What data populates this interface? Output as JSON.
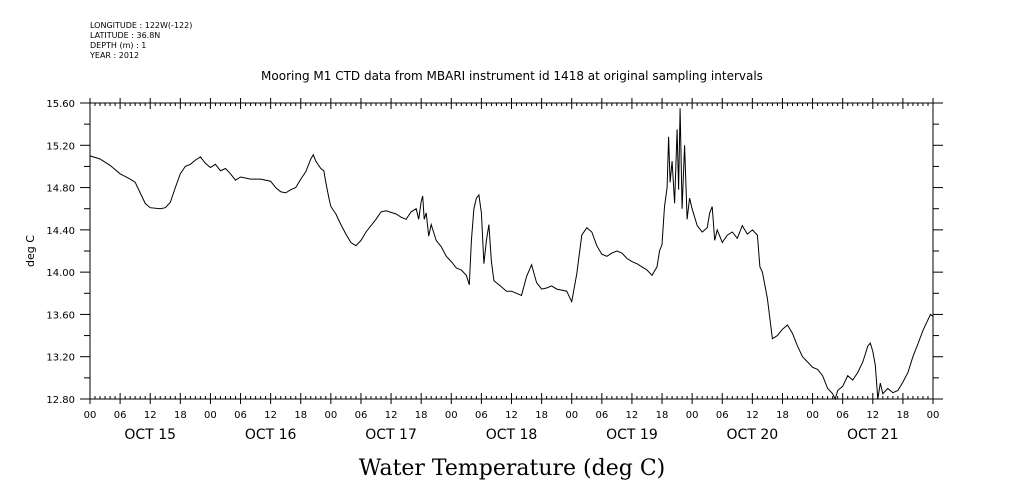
{
  "header": {
    "longitude": "LONGITUDE : 122W(-122)",
    "latitude": "LATITUDE : 36.8N",
    "depth": "DEPTH (m) : 1",
    "year": "YEAR : 2012"
  },
  "chart_data": {
    "type": "line",
    "title": "Mooring M1 CTD data from MBARI instrument id 1418 at original sampling intervals",
    "xlabel": "Water Temperature (deg C)",
    "ylabel": "deg C",
    "ylim": [
      12.8,
      15.6
    ],
    "y_ticks": [
      "12.80",
      "13.20",
      "13.60",
      "14.00",
      "14.40",
      "14.80",
      "15.20",
      "15.60"
    ],
    "xlim_hours": [
      0,
      168
    ],
    "x_hour_labels": [
      "00",
      "06",
      "12",
      "18",
      "00",
      "06",
      "12",
      "18",
      "00",
      "06",
      "12",
      "18",
      "00",
      "06",
      "12",
      "18",
      "00",
      "06",
      "12",
      "18",
      "00",
      "06",
      "12",
      "18",
      "00",
      "06",
      "12",
      "18",
      "00"
    ],
    "day_labels": [
      "OCT 15",
      "OCT 16",
      "OCT 17",
      "OCT 18",
      "OCT 19",
      "OCT 20",
      "OCT 21"
    ],
    "grid": false,
    "series": [
      {
        "points": [
          [
            0,
            15.1
          ],
          [
            2,
            15.07
          ],
          [
            4,
            15.01
          ],
          [
            6,
            14.93
          ],
          [
            8,
            14.88
          ],
          [
            9,
            14.85
          ],
          [
            10,
            14.75
          ],
          [
            11,
            14.65
          ],
          [
            12,
            14.61
          ],
          [
            14,
            14.6
          ],
          [
            15,
            14.61
          ],
          [
            16,
            14.66
          ],
          [
            17,
            14.8
          ],
          [
            18,
            14.93
          ],
          [
            19,
            15.0
          ],
          [
            20,
            15.02
          ],
          [
            21,
            15.06
          ],
          [
            22,
            15.09
          ],
          [
            23,
            15.03
          ],
          [
            24,
            14.99
          ],
          [
            25,
            15.02
          ],
          [
            26,
            14.96
          ],
          [
            27,
            14.98
          ],
          [
            28,
            14.93
          ],
          [
            29,
            14.87
          ],
          [
            30,
            14.9
          ],
          [
            32,
            14.88
          ],
          [
            34,
            14.88
          ],
          [
            36,
            14.86
          ],
          [
            37,
            14.8
          ],
          [
            38,
            14.76
          ],
          [
            39,
            14.75
          ],
          [
            40,
            14.78
          ],
          [
            41,
            14.8
          ],
          [
            42,
            14.88
          ],
          [
            43,
            14.95
          ],
          [
            44,
            15.07
          ],
          [
            44.5,
            15.11
          ],
          [
            45,
            15.05
          ],
          [
            46,
            14.98
          ],
          [
            46.6,
            14.96
          ],
          [
            47,
            14.85
          ],
          [
            47.6,
            14.7
          ],
          [
            48,
            14.62
          ],
          [
            49,
            14.55
          ],
          [
            50,
            14.45
          ],
          [
            51,
            14.36
          ],
          [
            52,
            14.28
          ],
          [
            53,
            14.25
          ],
          [
            54,
            14.3
          ],
          [
            55,
            14.38
          ],
          [
            57,
            14.5
          ],
          [
            58,
            14.57
          ],
          [
            59,
            14.58
          ],
          [
            61,
            14.55
          ],
          [
            62,
            14.52
          ],
          [
            63,
            14.5
          ],
          [
            64,
            14.57
          ],
          [
            65,
            14.6
          ],
          [
            65.5,
            14.5
          ],
          [
            66,
            14.67
          ],
          [
            66.3,
            14.72
          ],
          [
            66.6,
            14.5
          ],
          [
            67,
            14.56
          ],
          [
            67.5,
            14.34
          ],
          [
            68,
            14.45
          ],
          [
            69,
            14.3
          ],
          [
            70,
            14.24
          ],
          [
            71,
            14.15
          ],
          [
            72,
            14.1
          ],
          [
            73,
            14.04
          ],
          [
            74,
            14.02
          ],
          [
            75,
            13.97
          ],
          [
            75.6,
            13.88
          ],
          [
            76,
            14.3
          ],
          [
            76.5,
            14.6
          ],
          [
            77,
            14.7
          ],
          [
            77.5,
            14.73
          ],
          [
            78,
            14.56
          ],
          [
            78.5,
            14.08
          ],
          [
            79,
            14.3
          ],
          [
            79.5,
            14.45
          ],
          [
            80,
            14.1
          ],
          [
            80.5,
            13.92
          ],
          [
            81,
            13.9
          ],
          [
            82,
            13.86
          ],
          [
            83,
            13.82
          ],
          [
            84,
            13.82
          ],
          [
            85,
            13.8
          ],
          [
            86,
            13.78
          ],
          [
            87,
            13.96
          ],
          [
            88,
            14.07
          ],
          [
            89,
            13.9
          ],
          [
            90,
            13.84
          ],
          [
            91,
            13.85
          ],
          [
            92,
            13.87
          ],
          [
            93,
            13.84
          ],
          [
            94,
            13.83
          ],
          [
            95,
            13.82
          ],
          [
            96,
            13.72
          ],
          [
            97,
            13.98
          ],
          [
            98,
            14.35
          ],
          [
            99,
            14.42
          ],
          [
            100,
            14.38
          ],
          [
            101,
            14.25
          ],
          [
            102,
            14.17
          ],
          [
            103,
            14.15
          ],
          [
            104,
            14.18
          ],
          [
            105,
            14.2
          ],
          [
            106,
            14.18
          ],
          [
            107,
            14.13
          ],
          [
            108,
            14.1
          ],
          [
            109,
            14.08
          ],
          [
            110,
            14.05
          ],
          [
            111,
            14.02
          ],
          [
            112,
            13.97
          ],
          [
            113,
            14.05
          ],
          [
            113.5,
            14.2
          ],
          [
            114,
            14.26
          ],
          [
            114.5,
            14.62
          ],
          [
            115,
            14.8
          ],
          [
            115.3,
            15.28
          ],
          [
            115.6,
            14.85
          ],
          [
            116,
            15.05
          ],
          [
            116.5,
            14.65
          ],
          [
            117,
            15.35
          ],
          [
            117.3,
            14.78
          ],
          [
            117.6,
            15.55
          ],
          [
            118,
            14.6
          ],
          [
            118.5,
            15.2
          ],
          [
            119,
            14.5
          ],
          [
            119.5,
            14.7
          ],
          [
            120,
            14.6
          ],
          [
            121,
            14.44
          ],
          [
            122,
            14.38
          ],
          [
            123,
            14.42
          ],
          [
            123.5,
            14.56
          ],
          [
            124,
            14.62
          ],
          [
            124.5,
            14.3
          ],
          [
            125,
            14.4
          ],
          [
            126,
            14.28
          ],
          [
            127,
            14.35
          ],
          [
            128,
            14.38
          ],
          [
            129,
            14.32
          ],
          [
            130,
            14.44
          ],
          [
            131,
            14.36
          ],
          [
            132,
            14.4
          ],
          [
            133,
            14.35
          ],
          [
            133.5,
            14.05
          ],
          [
            134,
            14.0
          ],
          [
            135,
            13.75
          ],
          [
            136,
            13.37
          ],
          [
            137,
            13.4
          ],
          [
            138,
            13.46
          ],
          [
            139,
            13.5
          ],
          [
            140,
            13.42
          ],
          [
            141,
            13.3
          ],
          [
            142,
            13.2
          ],
          [
            143,
            13.15
          ],
          [
            144,
            13.1
          ],
          [
            145,
            13.08
          ],
          [
            146,
            13.02
          ],
          [
            147,
            12.9
          ],
          [
            148,
            12.85
          ],
          [
            148.5,
            12.8
          ],
          [
            149,
            12.88
          ],
          [
            150,
            12.92
          ],
          [
            151,
            13.02
          ],
          [
            152,
            12.98
          ],
          [
            153,
            13.05
          ],
          [
            154,
            13.15
          ],
          [
            155,
            13.3
          ],
          [
            155.5,
            13.33
          ],
          [
            156,
            13.25
          ],
          [
            156.5,
            13.12
          ],
          [
            157,
            12.8
          ],
          [
            157.5,
            12.95
          ],
          [
            158,
            12.85
          ],
          [
            159,
            12.9
          ],
          [
            160,
            12.86
          ],
          [
            161,
            12.88
          ],
          [
            162,
            12.96
          ],
          [
            163,
            13.05
          ],
          [
            164,
            13.2
          ],
          [
            165,
            13.32
          ],
          [
            166,
            13.45
          ],
          [
            167,
            13.55
          ],
          [
            167.5,
            13.6
          ],
          [
            168,
            13.58
          ]
        ]
      }
    ]
  }
}
